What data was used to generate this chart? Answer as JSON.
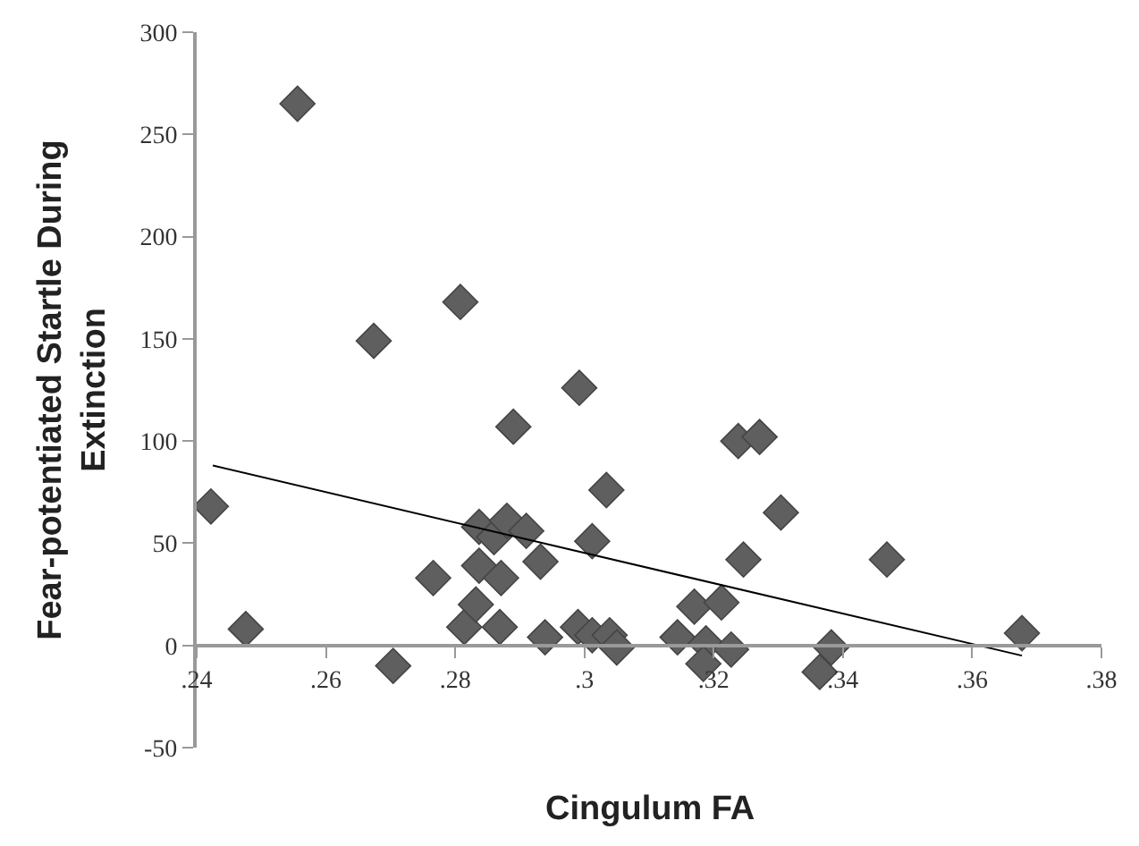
{
  "chart_data": {
    "type": "scatter",
    "xlabel": "Cingulum FA",
    "ylabel": "Fear-potentiated Startle During\nExtinction",
    "series": [
      {
        "color": "#5f5f5f",
        "marker": "diamond",
        "x": [
          0.2422,
          0.2476,
          0.2556,
          0.2674,
          0.2808,
          0.2704,
          0.2766,
          0.2814,
          0.2832,
          0.2837,
          0.2837,
          0.286,
          0.2869,
          0.2871,
          0.288,
          0.289,
          0.291,
          0.2932,
          0.2939,
          0.2992,
          0.299,
          0.3012,
          0.3012,
          0.3034,
          0.3039,
          0.305,
          0.3144,
          0.317,
          0.3188,
          0.3184,
          0.3212,
          0.3227,
          0.3238,
          0.3271,
          0.3246,
          0.3304,
          0.3382,
          0.3364,
          0.3468,
          0.3677
        ],
        "values": [
          68,
          8,
          265,
          149,
          168,
          -10,
          33,
          9,
          20,
          39,
          58,
          53,
          9,
          33,
          61,
          107,
          56,
          41,
          4,
          126,
          9,
          51,
          5,
          76,
          5,
          -1,
          4,
          19,
          1,
          -9,
          21,
          -2,
          100,
          102,
          42,
          65,
          -1,
          -13,
          42,
          6
        ]
      },
      {
        "type": "line",
        "color": "#000000",
        "line_style": "solid",
        "x": [
          0.2425,
          0.3677
        ],
        "values": [
          88,
          -5
        ]
      }
    ],
    "xlim": [
      0.24,
      0.38
    ],
    "ylim": [
      -50,
      300
    ],
    "xticks": [
      {
        "value": 0.24,
        "label": ".24"
      },
      {
        "value": 0.26,
        "label": ".26"
      },
      {
        "value": 0.28,
        "label": ".28"
      },
      {
        "value": 0.3,
        "label": ".3"
      },
      {
        "value": 0.32,
        "label": ".32"
      },
      {
        "value": 0.34,
        "label": ".34"
      },
      {
        "value": 0.36,
        "label": ".36"
      },
      {
        "value": 0.38,
        "label": ".38"
      }
    ],
    "yticks": [
      -50,
      0,
      50,
      100,
      150,
      200,
      250,
      300
    ]
  }
}
